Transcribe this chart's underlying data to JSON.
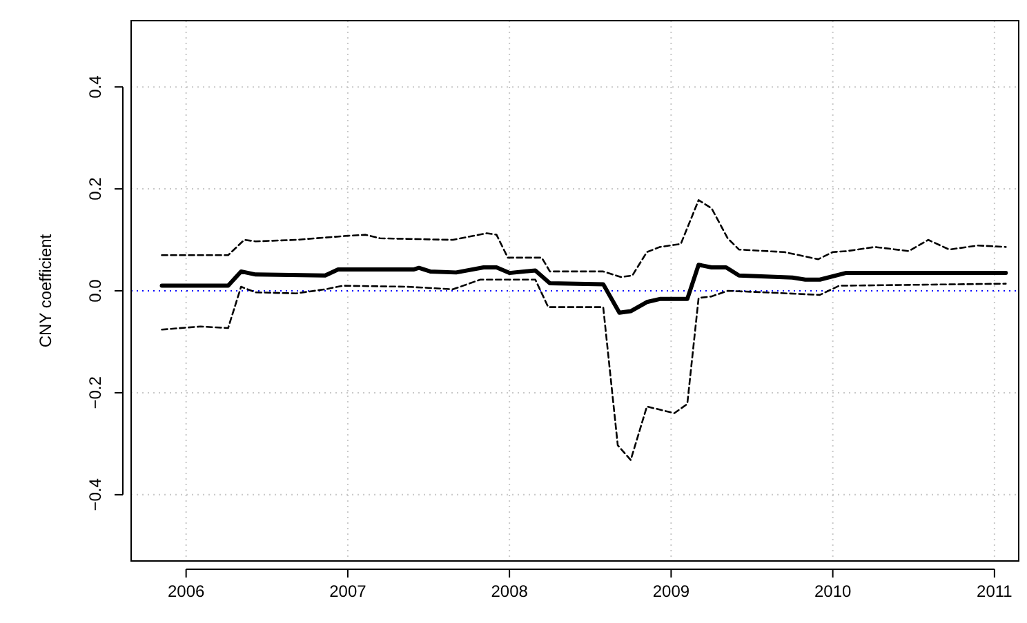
{
  "chart_data": {
    "type": "line",
    "ylabel": "CNY coefficient",
    "xlim": [
      2005.66,
      2011.15
    ],
    "ylim": [
      -0.53,
      0.53
    ],
    "xticks": [
      2006,
      2007,
      2008,
      2009,
      2010,
      2011
    ],
    "yticks": [
      {
        "value": -0.4,
        "label": "−0.4"
      },
      {
        "value": -0.2,
        "label": "−0.2"
      },
      {
        "value": 0,
        "label": "0.0"
      },
      {
        "value": 0.2,
        "label": "0.2"
      },
      {
        "value": 0.4,
        "label": "0.4"
      }
    ],
    "grid": true,
    "marker": "none",
    "ref_lines": [
      {
        "axis": "y",
        "value": 0,
        "color": "#0000ff",
        "line_style": "dotted"
      }
    ],
    "series": [
      {
        "color": "#000000",
        "line_style": "solid",
        "x": [
          2005.85,
          2006.26,
          2006.34,
          2006.43,
          2006.86,
          2006.94,
          2007.41,
          2007.44,
          2007.51,
          2007.67,
          2007.84,
          2007.92,
          2008.0,
          2008.16,
          2008.25,
          2008.58,
          2008.68,
          2008.75,
          2008.85,
          2008.93,
          2009.1,
          2009.17,
          2009.25,
          2009.34,
          2009.42,
          2009.75,
          2009.83,
          2009.92,
          2010.08,
          2011.07
        ],
        "values": [
          0.01,
          0.01,
          0.038,
          0.032,
          0.03,
          0.042,
          0.042,
          0.045,
          0.038,
          0.036,
          0.046,
          0.046,
          0.035,
          0.04,
          0.015,
          0.013,
          -0.043,
          -0.04,
          -0.022,
          -0.016,
          -0.016,
          0.051,
          0.046,
          0.046,
          0.03,
          0.026,
          0.022,
          0.022,
          0.035,
          0.035
        ]
      },
      {
        "color": "#000000",
        "line_style": "dashed",
        "x": [
          2005.85,
          2006.26,
          2006.36,
          2006.43,
          2006.68,
          2007.0,
          2007.11,
          2007.2,
          2007.65,
          2007.86,
          2007.92,
          2007.99,
          2008.2,
          2008.25,
          2008.58,
          2008.69,
          2008.76,
          2008.85,
          2008.93,
          2009.06,
          2009.17,
          2009.25,
          2009.35,
          2009.42,
          2009.7,
          2009.91,
          2010.0,
          2010.09,
          2010.26,
          2010.47,
          2010.59,
          2010.72,
          2010.9,
          2011.07
        ],
        "values": [
          0.07,
          0.07,
          0.1,
          0.097,
          0.1,
          0.108,
          0.11,
          0.103,
          0.1,
          0.113,
          0.11,
          0.065,
          0.065,
          0.038,
          0.038,
          0.027,
          0.03,
          0.076,
          0.086,
          0.092,
          0.178,
          0.162,
          0.103,
          0.081,
          0.076,
          0.062,
          0.076,
          0.078,
          0.086,
          0.078,
          0.1,
          0.081,
          0.089,
          0.086
        ]
      },
      {
        "color": "#000000",
        "line_style": "dashed",
        "x": [
          2005.85,
          2006.09,
          2006.26,
          2006.34,
          2006.43,
          2006.68,
          2006.86,
          2006.97,
          2007.37,
          2007.65,
          2007.82,
          2008.16,
          2008.24,
          2008.58,
          2008.67,
          2008.75,
          2008.85,
          2009.02,
          2009.1,
          2009.17,
          2009.25,
          2009.35,
          2009.58,
          2009.92,
          2010.04,
          2011.07
        ],
        "values": [
          -0.076,
          -0.07,
          -0.073,
          0.008,
          -0.003,
          -0.005,
          0.003,
          0.01,
          0.008,
          0.003,
          0.022,
          0.022,
          -0.032,
          -0.032,
          -0.303,
          -0.332,
          -0.227,
          -0.24,
          -0.222,
          -0.014,
          -0.011,
          0,
          -0.003,
          -0.008,
          0.01,
          0.014
        ]
      }
    ]
  }
}
